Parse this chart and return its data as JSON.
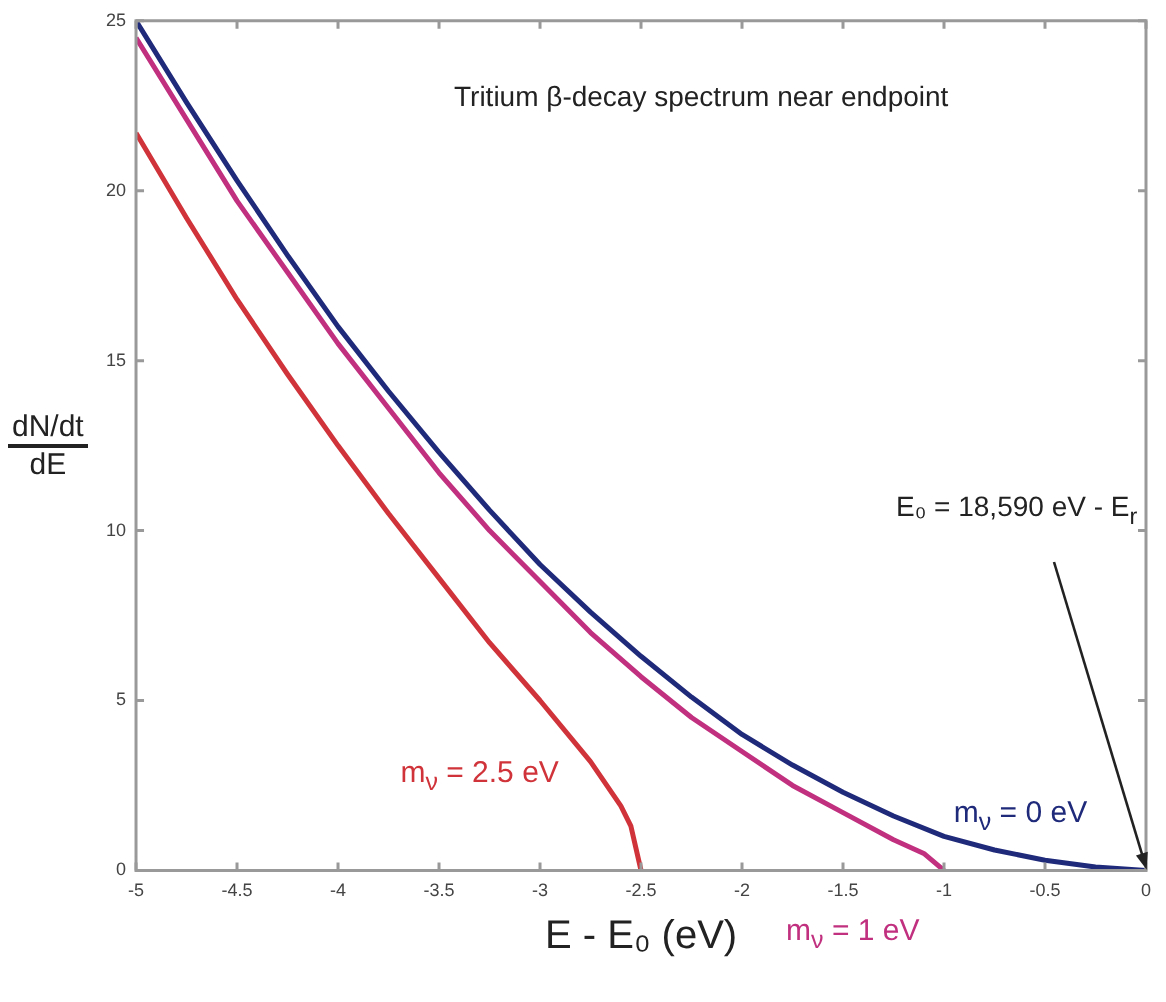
{
  "chart_data": {
    "type": "line",
    "xlabel": "E - E₀  (eV)",
    "ylabel": "dN/dt\ndE",
    "xlim": [
      -5,
      0
    ],
    "xticks": [
      -5,
      -4.5,
      -4,
      -3.5,
      -3,
      -2.5,
      -2,
      -1.5,
      -1,
      -0.5,
      0
    ],
    "ylim": [
      0,
      25
    ],
    "yticks": [
      0,
      5,
      10,
      15,
      20,
      25
    ],
    "grid": false,
    "legend": false,
    "marker": "none",
    "line_style": "solid",
    "series": [
      {
        "name": "m$_{ν}$ = 0 eV",
        "color": "#1f2a7a",
        "x": [
          -5,
          -4.75,
          -4.5,
          -4.25,
          -4,
          -3.75,
          -3.5,
          -3.25,
          -3,
          -2.75,
          -2.5,
          -2.25,
          -2,
          -1.75,
          -1.5,
          -1.25,
          -1,
          -0.75,
          -0.5,
          -0.25,
          0
        ],
        "values": [
          25,
          22.6,
          20.3,
          18.1,
          16,
          14.1,
          12.3,
          10.6,
          9,
          7.6,
          6.3,
          5.1,
          4,
          3.1,
          2.3,
          1.6,
          1,
          0.6,
          0.3,
          0.1,
          0
        ]
      },
      {
        "name": "m$_{ν}$ = 1 eV",
        "color": "#c0307f",
        "x": [
          -5,
          -4.75,
          -4.5,
          -4.25,
          -4,
          -3.75,
          -3.5,
          -3.25,
          -3,
          -2.75,
          -2.5,
          -2.25,
          -2,
          -1.75,
          -1.5,
          -1.25,
          -1.1,
          -1
        ],
        "values": [
          24.5,
          22.1,
          19.7,
          17.6,
          15.5,
          13.6,
          11.7,
          10,
          8.5,
          7,
          5.7,
          4.5,
          3.5,
          2.5,
          1.7,
          0.9,
          0.5,
          0
        ]
      },
      {
        "name": "m$_{ν}$ = 2.5 eV",
        "color": "#d0343a",
        "x": [
          -5,
          -4.75,
          -4.5,
          -4.25,
          -4,
          -3.75,
          -3.5,
          -3.25,
          -3,
          -2.75,
          -2.6,
          -2.55,
          -2.5
        ],
        "values": [
          21.7,
          19.2,
          16.8,
          14.6,
          12.5,
          10.5,
          8.6,
          6.7,
          5,
          3.2,
          1.9,
          1.3,
          0
        ]
      }
    ],
    "annotations": [
      "Tritium β-decay spectrum near endpoint",
      {
        "text": "E₀ = 18,590 eV - E$_{r}$",
        "x": 0,
        "y": 0
      }
    ]
  }
}
